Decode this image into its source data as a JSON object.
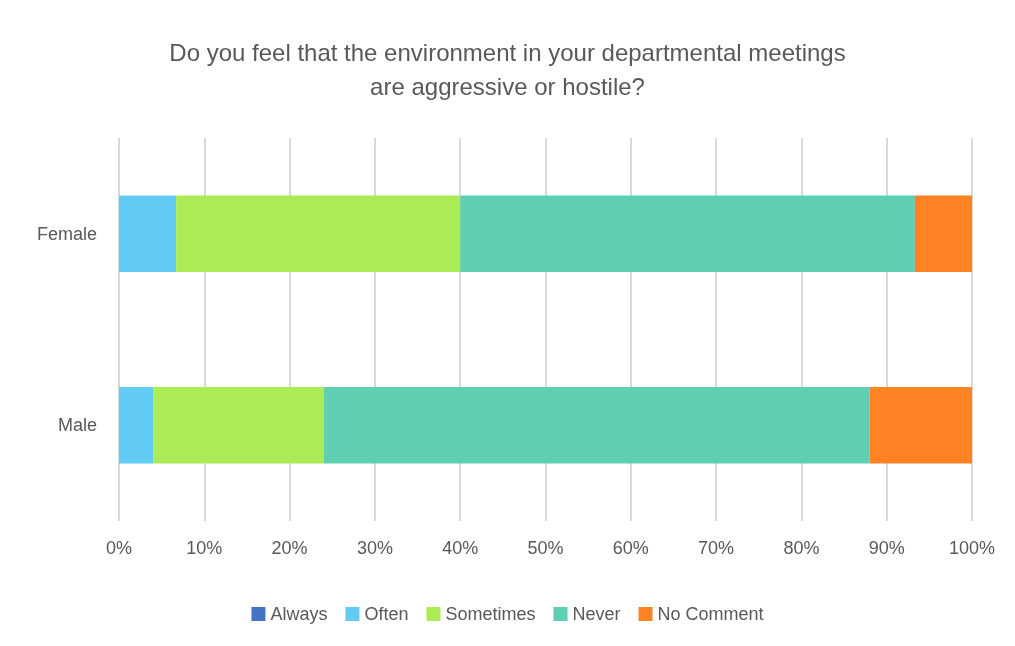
{
  "chart_data": {
    "type": "bar",
    "orientation": "horizontal",
    "stacked": true,
    "title": "Do you feel that the environment in your departmental meetings\nare aggressive or hostile?",
    "categories": [
      "Female",
      "Male"
    ],
    "series": [
      {
        "name": "Always",
        "color": "#4472c4",
        "values": [
          0,
          0
        ]
      },
      {
        "name": "Often",
        "color": "#61cbf3",
        "values": [
          6.7,
          4
        ]
      },
      {
        "name": "Sometimes",
        "color": "#abeb55",
        "values": [
          33.3,
          20
        ]
      },
      {
        "name": "Never",
        "color": "#5ecfb2",
        "values": [
          53.3,
          64
        ]
      },
      {
        "name": "No Comment",
        "color": "#ff8223",
        "values": [
          6.7,
          12
        ]
      }
    ],
    "xlim": [
      0,
      100
    ],
    "xticks": [
      {
        "value": 0,
        "label": "0%"
      },
      {
        "value": 10,
        "label": "10%"
      },
      {
        "value": 20,
        "label": "20%"
      },
      {
        "value": 30,
        "label": "30%"
      },
      {
        "value": 40,
        "label": "40%"
      },
      {
        "value": 50,
        "label": "50%"
      },
      {
        "value": 60,
        "label": "60%"
      },
      {
        "value": 70,
        "label": "70%"
      },
      {
        "value": 80,
        "label": "80%"
      },
      {
        "value": 90,
        "label": "90%"
      },
      {
        "value": 100,
        "label": "100%"
      }
    ],
    "grid": "x",
    "legend": "bottom"
  }
}
